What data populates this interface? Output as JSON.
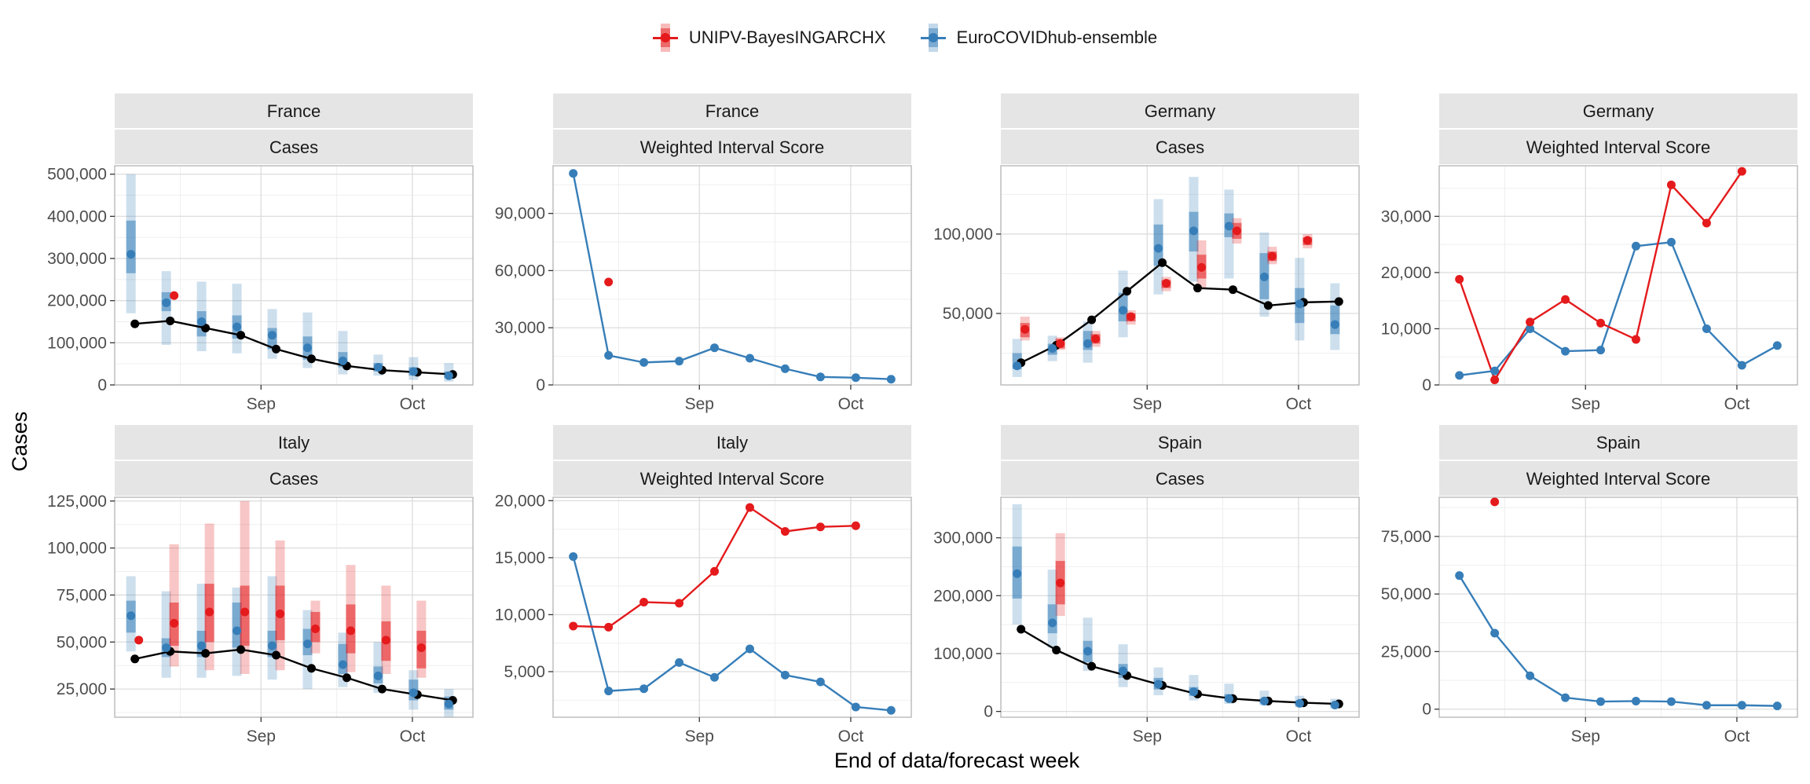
{
  "colors": {
    "UNIPV": "#e41a1c",
    "Ensemble": "#377eb8",
    "Observed": "#000000",
    "strip_bg": "#e5e5e5",
    "grid_major": "#dddddd",
    "grid_minor": "#efefef"
  },
  "legend": {
    "items": [
      {
        "label": "UNIPV-BayesINGARCHX",
        "color": "#e41a1c"
      },
      {
        "label": "EuroCOVIDhub-ensemble",
        "color": "#377eb8"
      }
    ]
  },
  "axes": {
    "xlabel": "End of data/forecast week",
    "ylabel": "Cases"
  },
  "chart_data": {
    "type": "faceted-line-interval",
    "weeks": [
      "2021-08-07",
      "2021-08-14",
      "2021-08-21",
      "2021-08-28",
      "2021-09-04",
      "2021-09-11",
      "2021-09-18",
      "2021-09-25",
      "2021-10-02",
      "2021-10-09"
    ],
    "x_ticks": [
      {
        "label": "Sep",
        "date": "2021-09-01"
      },
      {
        "label": "Oct",
        "date": "2021-10-01"
      }
    ],
    "panels": [
      {
        "country": "France",
        "target": "Cases",
        "kind": "cases",
        "ylim": [
          0,
          520000
        ],
        "y_ticks": [
          0,
          100000,
          200000,
          300000,
          400000,
          500000
        ],
        "y_tick_labels": [
          "0",
          "100,000",
          "200,000",
          "300,000",
          "400,000",
          "500,000"
        ],
        "observed": [
          145000,
          152000,
          135000,
          118000,
          85000,
          62000,
          45000,
          35000,
          30000,
          25000
        ],
        "ensemble": [
          {
            "median": 310000,
            "inner": [
              265000,
              390000
            ],
            "outer": [
              170000,
              500000
            ]
          },
          {
            "median": 195000,
            "inner": [
              175000,
              220000
            ],
            "outer": [
              95000,
              270000
            ]
          },
          {
            "median": 150000,
            "inner": [
              115000,
              175000
            ],
            "outer": [
              80000,
              245000
            ]
          },
          {
            "median": 138000,
            "inner": [
              110000,
              165000
            ],
            "outer": [
              75000,
              240000
            ]
          },
          {
            "median": 118000,
            "inner": [
              85000,
              135000
            ],
            "outer": [
              62000,
              180000
            ]
          },
          {
            "median": 88000,
            "inner": [
              60000,
              115000
            ],
            "outer": [
              40000,
              172000
            ]
          },
          {
            "median": 57000,
            "inner": [
              42000,
              78000
            ],
            "outer": [
              25000,
              128000
            ]
          },
          {
            "median": 42000,
            "inner": [
              32000,
              52000
            ],
            "outer": [
              22000,
              72000
            ]
          },
          {
            "median": 32000,
            "inner": [
              22000,
              42000
            ],
            "outer": [
              12000,
              66000
            ]
          },
          {
            "median": 22000,
            "inner": [
              16000,
              32000
            ],
            "outer": [
              8000,
              52000
            ]
          }
        ],
        "unipv": [
          null,
          {
            "median": 212000
          },
          null,
          null,
          null,
          null,
          null,
          null,
          null,
          null
        ]
      },
      {
        "country": "France",
        "target": "Weighted Interval Score",
        "kind": "wis",
        "ylim": [
          0,
          115000
        ],
        "y_ticks": [
          0,
          30000,
          60000,
          90000
        ],
        "y_tick_labels": [
          "0",
          "30,000",
          "60,000",
          "90,000"
        ],
        "ensemble": [
          111000,
          15500,
          11800,
          12500,
          19500,
          14000,
          8500,
          4200,
          3800,
          3000
        ],
        "unipv": [
          null,
          54000,
          null,
          null,
          null,
          null,
          null,
          null,
          null,
          null
        ]
      },
      {
        "country": "Germany",
        "target": "Cases",
        "kind": "cases",
        "ylim": [
          5000,
          143000
        ],
        "y_ticks": [
          50000,
          100000
        ],
        "y_tick_labels": [
          "50,000",
          "100,000"
        ],
        "observed": [
          19000,
          30000,
          46000,
          64000,
          82000,
          66000,
          65000,
          55000,
          57000,
          57500
        ],
        "ensemble": [
          {
            "median": 17000,
            "inner": [
              15000,
              25000
            ],
            "outer": [
              10000,
              34000
            ]
          },
          {
            "median": 28000,
            "inner": [
              24000,
              31000
            ],
            "outer": [
              20000,
              36000
            ]
          },
          {
            "median": 31000,
            "inner": [
              27000,
              39000
            ],
            "outer": [
              19000,
              45000
            ]
          },
          {
            "median": 52000,
            "inner": [
              45000,
              63000
            ],
            "outer": [
              35000,
              77000
            ]
          },
          {
            "median": 91000,
            "inner": [
              80000,
              106000
            ],
            "outer": [
              62000,
              122000
            ]
          },
          {
            "median": 102000,
            "inner": [
              89000,
              114000
            ],
            "outer": [
              70000,
              136000
            ]
          },
          {
            "median": 105000,
            "inner": [
              98000,
              113000
            ],
            "outer": [
              72000,
              128000
            ]
          },
          {
            "median": 73000,
            "inner": [
              59000,
              88000
            ],
            "outer": [
              48000,
              101000
            ]
          },
          {
            "median": 56000,
            "inner": [
              44000,
              66000
            ],
            "outer": [
              33000,
              85000
            ]
          },
          {
            "median": 43000,
            "inner": [
              37000,
              55000
            ],
            "outer": [
              27000,
              69000
            ]
          }
        ],
        "unipv": [
          {
            "median": 40000,
            "inner": [
              35000,
              44000
            ],
            "outer": [
              33000,
              48000
            ]
          },
          {
            "median": 31000,
            "inner": [
              28000,
              34000
            ],
            "outer": [
              27000,
              35000
            ]
          },
          {
            "median": 34000,
            "inner": [
              31000,
              37000
            ],
            "outer": [
              29000,
              39000
            ]
          },
          {
            "median": 48000,
            "inner": [
              45000,
              50000
            ],
            "outer": [
              43000,
              52000
            ]
          },
          {
            "median": 69000,
            "inner": [
              66000,
              71000
            ],
            "outer": [
              64000,
              73000
            ]
          },
          {
            "median": 79000,
            "inner": [
              72000,
              87000
            ],
            "outer": [
              66000,
              96000
            ]
          },
          {
            "median": 102000,
            "inner": [
              97000,
              107000
            ],
            "outer": [
              94000,
              110000
            ]
          },
          {
            "median": 86000,
            "inner": [
              83000,
              89000
            ],
            "outer": [
              81000,
              92000
            ]
          },
          {
            "median": 96000,
            "inner": [
              93000,
              98000
            ],
            "outer": [
              91000,
              100000
            ]
          },
          null
        ]
      },
      {
        "country": "Germany",
        "target": "Weighted Interval Score",
        "kind": "wis",
        "ylim": [
          0,
          39000
        ],
        "y_ticks": [
          0,
          10000,
          20000,
          30000
        ],
        "y_tick_labels": [
          "0",
          "10,000",
          "20,000",
          "30,000"
        ],
        "ensemble": [
          1700,
          2500,
          10000,
          6000,
          6200,
          24700,
          25400,
          10000,
          3500,
          7000
        ],
        "unipv": [
          18800,
          900,
          11200,
          15200,
          11000,
          8100,
          35600,
          28800,
          38000,
          null
        ]
      },
      {
        "country": "Italy",
        "target": "Cases",
        "kind": "cases",
        "ylim": [
          10000,
          127000
        ],
        "y_ticks": [
          25000,
          50000,
          75000,
          100000,
          125000
        ],
        "y_tick_labels": [
          "25,000",
          "50,000",
          "75,000",
          "100,000",
          "125,000"
        ],
        "observed": [
          41000,
          45000,
          44000,
          46000,
          43000,
          36000,
          31000,
          25000,
          22000,
          19000
        ],
        "ensemble": [
          {
            "median": 64000,
            "inner": [
              55000,
              72000
            ],
            "outer": [
              45000,
              85000
            ]
          },
          {
            "median": 47000,
            "inner": [
              42000,
              52000
            ],
            "outer": [
              31000,
              77000
            ]
          },
          {
            "median": 48000,
            "inner": [
              42000,
              56000
            ],
            "outer": [
              31000,
              81000
            ]
          },
          {
            "median": 56000,
            "inner": [
              47000,
              71000
            ],
            "outer": [
              32000,
              79000
            ]
          },
          {
            "median": 48000,
            "inner": [
              42000,
              56000
            ],
            "outer": [
              30000,
              85000
            ]
          },
          {
            "median": 49000,
            "inner": [
              43000,
              57000
            ],
            "outer": [
              25000,
              67000
            ]
          },
          {
            "median": 38000,
            "inner": [
              33000,
              49000
            ],
            "outer": [
              26000,
              55000
            ]
          },
          {
            "median": 32000,
            "inner": [
              28000,
              37000
            ],
            "outer": [
              23000,
              50000
            ]
          },
          {
            "median": 23000,
            "inner": [
              19000,
              30000
            ],
            "outer": [
              14000,
              35000
            ]
          },
          {
            "median": 17000,
            "inner": [
              14000,
              21000
            ],
            "outer": [
              10000,
              25000
            ]
          }
        ],
        "unipv": [
          {
            "median": 51000
          },
          {
            "median": 60000,
            "inner": [
              48000,
              71000
            ],
            "outer": [
              37000,
              102000
            ]
          },
          {
            "median": 66000,
            "inner": [
              50000,
              81000
            ],
            "outer": [
              35000,
              113000
            ]
          },
          {
            "median": 66000,
            "inner": [
              48000,
              80000
            ],
            "outer": [
              33000,
              125000
            ]
          },
          {
            "median": 65000,
            "inner": [
              51000,
              80000
            ],
            "outer": [
              35000,
              104000
            ]
          },
          {
            "median": 57000,
            "inner": [
              50000,
              66000
            ],
            "outer": [
              44000,
              72000
            ]
          },
          {
            "median": 56000,
            "inner": [
              44000,
              70000
            ],
            "outer": [
              34000,
              91000
            ]
          },
          {
            "median": 51000,
            "inner": [
              40000,
              61000
            ],
            "outer": [
              33000,
              80000
            ]
          },
          {
            "median": 47000,
            "inner": [
              36000,
              56000
            ],
            "outer": [
              31000,
              72000
            ]
          },
          null
        ]
      },
      {
        "country": "Italy",
        "target": "Weighted Interval Score",
        "kind": "wis",
        "ylim": [
          1000,
          20300
        ],
        "y_ticks": [
          5000,
          10000,
          15000,
          20000
        ],
        "y_tick_labels": [
          "5,000",
          "10,000",
          "15,000",
          "20,000"
        ],
        "ensemble": [
          15100,
          3300,
          3500,
          5800,
          4500,
          7000,
          4700,
          4100,
          1900,
          1600
        ],
        "unipv": [
          9000,
          8900,
          11100,
          11000,
          13800,
          19400,
          17300,
          17700,
          17800,
          null
        ]
      },
      {
        "country": "Spain",
        "target": "Cases",
        "kind": "cases",
        "ylim": [
          -10000,
          370000
        ],
        "y_ticks": [
          0,
          100000,
          200000,
          300000
        ],
        "y_tick_labels": [
          "0",
          "100,000",
          "200,000",
          "300,000"
        ],
        "observed": [
          142000,
          106000,
          78000,
          62000,
          45000,
          30000,
          22000,
          18000,
          15000,
          13000
        ],
        "ensemble": [
          {
            "median": 238000,
            "inner": [
              195000,
              285000
            ],
            "outer": [
              150000,
              358000
            ]
          },
          {
            "median": 153000,
            "inner": [
              135000,
              185000
            ],
            "outer": [
              110000,
              245000
            ]
          },
          {
            "median": 104000,
            "inner": [
              85000,
              122000
            ],
            "outer": [
              70000,
              162000
            ]
          },
          {
            "median": 70000,
            "inner": [
              58000,
              82000
            ],
            "outer": [
              42000,
              116000
            ]
          },
          {
            "median": 47000,
            "inner": [
              38000,
              58000
            ],
            "outer": [
              28000,
              76000
            ]
          },
          {
            "median": 34000,
            "inner": [
              27000,
              42000
            ],
            "outer": [
              19000,
              63000
            ]
          },
          {
            "median": 22000,
            "inner": [
              18000,
              30000
            ],
            "outer": [
              13000,
              48000
            ]
          },
          {
            "median": 18000,
            "inner": [
              14000,
              22000
            ],
            "outer": [
              10000,
              36000
            ]
          },
          {
            "median": 14000,
            "inner": [
              11000,
              18000
            ],
            "outer": [
              7000,
              27000
            ]
          },
          {
            "median": 11000,
            "inner": [
              9000,
              14000
            ],
            "outer": [
              5000,
              22000
            ]
          }
        ],
        "unipv": [
          null,
          {
            "median": 222000,
            "inner": [
              185000,
              260000
            ],
            "outer": [
              165000,
              308000
            ]
          },
          null,
          null,
          null,
          null,
          null,
          null,
          null,
          null
        ]
      },
      {
        "country": "Spain",
        "target": "Weighted Interval Score",
        "kind": "wis",
        "ylim": [
          -3500,
          92000
        ],
        "y_ticks": [
          0,
          25000,
          50000,
          75000
        ],
        "y_tick_labels": [
          "0",
          "25,000",
          "50,000",
          "75,000"
        ],
        "ensemble": [
          58000,
          33000,
          14500,
          5000,
          3300,
          3500,
          3300,
          1700,
          1700,
          1400
        ],
        "unipv": [
          null,
          90000,
          null,
          null,
          null,
          null,
          null,
          null,
          null,
          null
        ]
      }
    ]
  }
}
